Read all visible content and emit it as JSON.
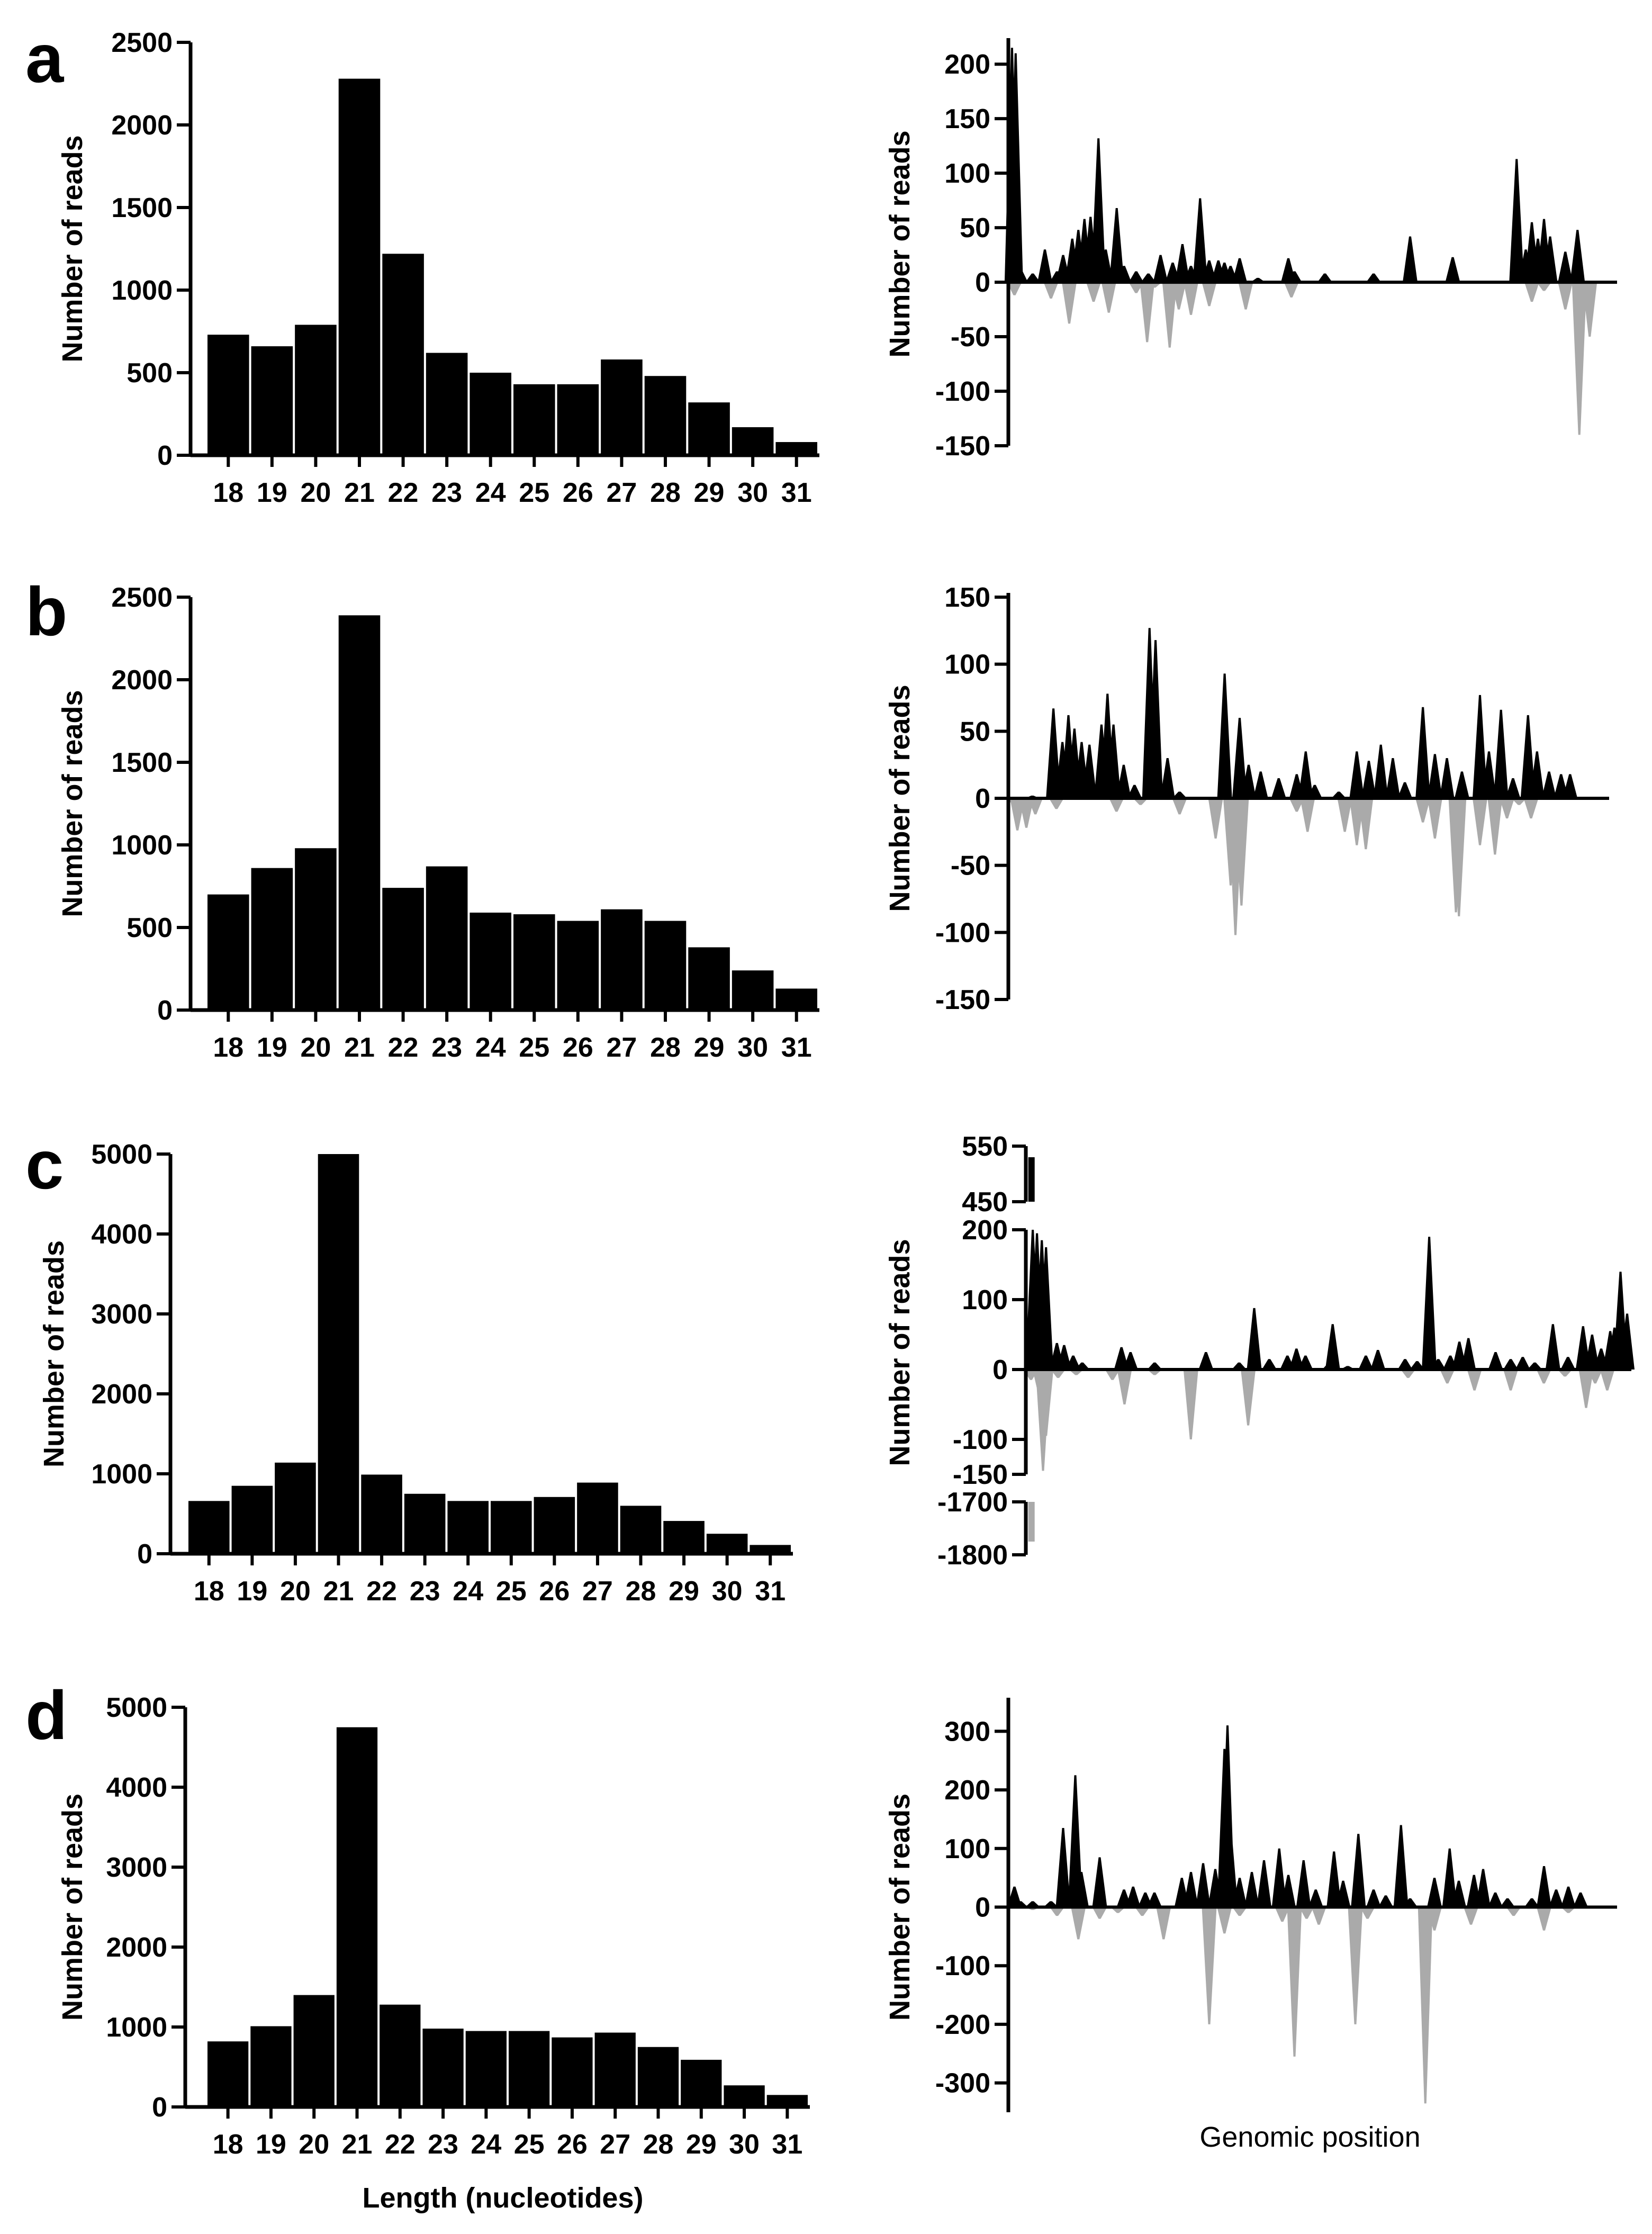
{
  "figure": {
    "x_title_left": "Length (nucleotides)",
    "x_title_right": "Genomic position",
    "colors": {
      "sense": "#000000",
      "antisense": "#aaaaaa",
      "bar": "#000000"
    }
  },
  "chart_data": [
    {
      "panel": "a",
      "side": "left",
      "type": "bar",
      "ylabel": "Number of reads",
      "categories": [
        "18",
        "19",
        "20",
        "21",
        "22",
        "23",
        "24",
        "25",
        "26",
        "27",
        "28",
        "29",
        "30",
        "31"
      ],
      "values": [
        730,
        660,
        790,
        2280,
        1220,
        620,
        500,
        430,
        430,
        580,
        480,
        320,
        170,
        80
      ],
      "ylim": [
        0,
        2500
      ],
      "yticks": [
        0,
        500,
        1000,
        1500,
        2000,
        2500
      ]
    },
    {
      "panel": "a",
      "side": "right",
      "type": "area",
      "ylabel": "Number of reads",
      "ylim": [
        -150,
        220
      ],
      "yticks": [
        -150,
        -100,
        -50,
        0,
        50,
        100,
        150,
        200
      ],
      "xrange": [
        0,
        100
      ],
      "sense_peaks": [
        [
          0.6,
          215
        ],
        [
          1.2,
          210
        ],
        [
          2,
          12
        ],
        [
          4,
          8
        ],
        [
          6,
          30
        ],
        [
          8,
          10
        ],
        [
          9,
          25
        ],
        [
          10.5,
          40
        ],
        [
          11.5,
          48
        ],
        [
          12.5,
          58
        ],
        [
          13.5,
          60
        ],
        [
          14.8,
          132
        ],
        [
          16,
          30
        ],
        [
          17.8,
          68
        ],
        [
          19,
          15
        ],
        [
          21,
          10
        ],
        [
          23,
          8
        ],
        [
          25,
          25
        ],
        [
          27,
          18
        ],
        [
          28.6,
          35
        ],
        [
          30,
          15
        ],
        [
          31.5,
          77
        ],
        [
          33,
          20
        ],
        [
          34.5,
          20
        ],
        [
          35.5,
          18
        ],
        [
          36.5,
          15
        ],
        [
          38,
          22
        ],
        [
          41,
          4
        ],
        [
          46,
          22
        ],
        [
          47,
          10
        ],
        [
          52,
          8
        ],
        [
          60,
          8
        ],
        [
          66,
          42
        ],
        [
          73,
          23
        ],
        [
          83.5,
          113
        ],
        [
          85,
          30
        ],
        [
          86,
          55
        ],
        [
          87,
          40
        ],
        [
          88,
          58
        ],
        [
          89,
          42
        ],
        [
          91.5,
          28
        ],
        [
          93.5,
          48
        ]
      ],
      "antisense_peaks": [
        [
          1,
          -12
        ],
        [
          7,
          -15
        ],
        [
          10,
          -38
        ],
        [
          14,
          -18
        ],
        [
          16.5,
          -28
        ],
        [
          21,
          -10
        ],
        [
          22.8,
          -55
        ],
        [
          24,
          -5
        ],
        [
          26.5,
          -60
        ],
        [
          28,
          -25
        ],
        [
          30,
          -30
        ],
        [
          33,
          -22
        ],
        [
          39,
          -25
        ],
        [
          46.5,
          -14
        ],
        [
          86,
          -18
        ],
        [
          88,
          -8
        ],
        [
          91.5,
          -25
        ],
        [
          93.8,
          -140
        ],
        [
          95.5,
          -50
        ]
      ]
    },
    {
      "panel": "b",
      "side": "left",
      "type": "bar",
      "ylabel": "Number of reads",
      "categories": [
        "18",
        "19",
        "20",
        "21",
        "22",
        "23",
        "24",
        "25",
        "26",
        "27",
        "28",
        "29",
        "30",
        "31"
      ],
      "values": [
        700,
        860,
        980,
        2390,
        740,
        870,
        590,
        580,
        540,
        610,
        540,
        380,
        240,
        130
      ],
      "ylim": [
        0,
        2500
      ],
      "yticks": [
        0,
        500,
        1000,
        1500,
        2000,
        2500
      ]
    },
    {
      "panel": "b",
      "side": "right",
      "type": "area",
      "ylabel": "Number of reads",
      "ylim": [
        -150,
        150
      ],
      "yticks": [
        -150,
        -100,
        -50,
        0,
        50,
        100,
        150
      ],
      "xrange": [
        0,
        100
      ],
      "sense_peaks": [
        [
          4,
          2
        ],
        [
          7.5,
          67
        ],
        [
          9,
          42
        ],
        [
          10,
          62
        ],
        [
          11,
          52
        ],
        [
          12.2,
          42
        ],
        [
          13.5,
          40
        ],
        [
          15.5,
          55
        ],
        [
          16.5,
          78
        ],
        [
          17.5,
          55
        ],
        [
          19.2,
          25
        ],
        [
          21,
          10
        ],
        [
          23.5,
          127
        ],
        [
          24.5,
          118
        ],
        [
          26.5,
          30
        ],
        [
          28.5,
          5
        ],
        [
          36,
          93
        ],
        [
          38.5,
          60
        ],
        [
          40,
          25
        ],
        [
          42,
          20
        ],
        [
          45,
          15
        ],
        [
          48,
          18
        ],
        [
          49.5,
          35
        ],
        [
          51,
          10
        ],
        [
          55,
          5
        ],
        [
          58,
          35
        ],
        [
          60,
          28
        ],
        [
          62,
          40
        ],
        [
          64,
          30
        ],
        [
          66,
          12
        ],
        [
          69,
          68
        ],
        [
          71,
          33
        ],
        [
          73,
          30
        ],
        [
          75.5,
          20
        ],
        [
          78.5,
          77
        ],
        [
          80,
          35
        ],
        [
          82,
          66
        ],
        [
          84,
          15
        ],
        [
          86.5,
          62
        ],
        [
          88,
          35
        ],
        [
          90,
          20
        ],
        [
          92,
          18
        ],
        [
          93.5,
          18
        ]
      ],
      "antisense_peaks": [
        [
          0.5,
          -3
        ],
        [
          1.5,
          -24
        ],
        [
          3,
          -22
        ],
        [
          4.5,
          -12
        ],
        [
          8,
          -8
        ],
        [
          18,
          -10
        ],
        [
          22,
          -5
        ],
        [
          28.5,
          -12
        ],
        [
          34.5,
          -30
        ],
        [
          37,
          -65
        ],
        [
          37.8,
          -102
        ],
        [
          38.8,
          -80
        ],
        [
          48,
          -10
        ],
        [
          49.8,
          -25
        ],
        [
          56,
          -25
        ],
        [
          58,
          -35
        ],
        [
          59.5,
          -38
        ],
        [
          69,
          -18
        ],
        [
          71,
          -30
        ],
        [
          74.5,
          -85
        ],
        [
          75,
          -88
        ],
        [
          78.5,
          -35
        ],
        [
          81,
          -42
        ],
        [
          83,
          -15
        ],
        [
          85,
          -5
        ],
        [
          87,
          -15
        ]
      ]
    },
    {
      "panel": "c",
      "side": "left",
      "type": "bar",
      "ylabel": "Number of reads",
      "categories": [
        "18",
        "19",
        "20",
        "21",
        "22",
        "23",
        "24",
        "25",
        "26",
        "27",
        "28",
        "29",
        "30",
        "31"
      ],
      "values": [
        660,
        850,
        1140,
        5000,
        990,
        750,
        660,
        660,
        710,
        890,
        600,
        410,
        250,
        110
      ],
      "ylim": [
        0,
        5000
      ],
      "yticks": [
        0,
        1000,
        2000,
        3000,
        4000,
        5000
      ]
    },
    {
      "panel": "c",
      "side": "right",
      "type": "area",
      "ylabel": "Number of reads",
      "broken_axis": true,
      "ylim_segments": [
        [
          450,
          550
        ],
        [
          -150,
          200
        ],
        [
          -1800,
          -1700
        ]
      ],
      "yticks": [
        -1800,
        -1700,
        -150,
        -100,
        0,
        100,
        200,
        450,
        550
      ],
      "xrange": [
        0,
        100
      ],
      "sense_peaks": [
        [
          0.8,
          200
        ],
        [
          1.5,
          195
        ],
        [
          2.3,
          185
        ],
        [
          3,
          175
        ],
        [
          4.8,
          38
        ],
        [
          6,
          35
        ],
        [
          7.5,
          20
        ],
        [
          9,
          10
        ],
        [
          15.5,
          32
        ],
        [
          17,
          25
        ],
        [
          21,
          10
        ],
        [
          29.5,
          25
        ],
        [
          35,
          10
        ],
        [
          37.5,
          88
        ],
        [
          40,
          15
        ],
        [
          43,
          20
        ],
        [
          44.5,
          30
        ],
        [
          46,
          20
        ],
        [
          50,
          10
        ],
        [
          50.5,
          65
        ],
        [
          53,
          5
        ],
        [
          56,
          20
        ],
        [
          58,
          28
        ],
        [
          62.5,
          15
        ],
        [
          64.5,
          12
        ],
        [
          66.5,
          190
        ],
        [
          68,
          15
        ],
        [
          70,
          20
        ],
        [
          71.5,
          40
        ],
        [
          73,
          45
        ],
        [
          77.5,
          25
        ],
        [
          80,
          15
        ],
        [
          82,
          18
        ],
        [
          84,
          10
        ],
        [
          87,
          65
        ],
        [
          89.5,
          18
        ],
        [
          92,
          62
        ],
        [
          93.5,
          50
        ],
        [
          95,
          30
        ],
        [
          96.5,
          55
        ],
        [
          97.2,
          60
        ],
        [
          98.2,
          140
        ],
        [
          99.3,
          80
        ]
      ],
      "antisense_peaks": [
        [
          0.5,
          -15
        ],
        [
          2,
          -40
        ],
        [
          2.5,
          -145
        ],
        [
          3,
          -95
        ],
        [
          5,
          -12
        ],
        [
          8,
          -8
        ],
        [
          14,
          -15
        ],
        [
          16,
          -50
        ],
        [
          21,
          -8
        ],
        [
          27,
          -100
        ],
        [
          36.5,
          -80
        ],
        [
          63,
          -12
        ],
        [
          69.5,
          -20
        ],
        [
          74,
          -30
        ],
        [
          80,
          -30
        ],
        [
          85.5,
          -20
        ],
        [
          89,
          -10
        ],
        [
          92.5,
          -55
        ],
        [
          94,
          -20
        ],
        [
          96,
          -30
        ]
      ],
      "broken_peaks": {
        "top": [
          [
            0.5,
            530
          ]
        ],
        "bottom": [
          [
            0.5,
            -1775
          ]
        ]
      }
    },
    {
      "panel": "d",
      "side": "left",
      "type": "bar",
      "ylabel": "Number of reads",
      "categories": [
        "18",
        "19",
        "20",
        "21",
        "22",
        "23",
        "24",
        "25",
        "26",
        "27",
        "28",
        "29",
        "30",
        "31"
      ],
      "values": [
        820,
        1010,
        1400,
        4750,
        1280,
        980,
        950,
        950,
        870,
        930,
        750,
        590,
        270,
        150
      ],
      "ylim": [
        0,
        5000
      ],
      "yticks": [
        0,
        1000,
        2000,
        3000,
        4000,
        5000
      ]
    },
    {
      "panel": "d",
      "side": "right",
      "type": "area",
      "ylabel": "Number of reads",
      "ylim": [
        -350,
        350
      ],
      "yticks": [
        -300,
        -200,
        -100,
        0,
        100,
        200,
        300
      ],
      "xrange": [
        0,
        100
      ],
      "sense_peaks": [
        [
          1,
          35
        ],
        [
          2,
          10
        ],
        [
          4,
          10
        ],
        [
          7,
          10
        ],
        [
          9,
          135
        ],
        [
          11,
          225
        ],
        [
          12,
          60
        ],
        [
          15,
          85
        ],
        [
          19,
          30
        ],
        [
          20.5,
          35
        ],
        [
          22.5,
          25
        ],
        [
          24,
          25
        ],
        [
          28.5,
          50
        ],
        [
          30,
          60
        ],
        [
          32,
          75
        ],
        [
          34,
          65
        ],
        [
          35.5,
          270
        ],
        [
          36,
          310
        ],
        [
          36.5,
          130
        ],
        [
          38,
          50
        ],
        [
          40,
          60
        ],
        [
          42,
          80
        ],
        [
          44.5,
          100
        ],
        [
          46,
          55
        ],
        [
          48.5,
          80
        ],
        [
          50.5,
          30
        ],
        [
          53.5,
          95
        ],
        [
          55,
          45
        ],
        [
          57.5,
          125
        ],
        [
          60,
          30
        ],
        [
          62,
          20
        ],
        [
          64.5,
          140
        ],
        [
          66,
          15
        ],
        [
          70,
          50
        ],
        [
          72.5,
          100
        ],
        [
          74,
          45
        ],
        [
          76.5,
          55
        ],
        [
          78,
          65
        ],
        [
          80,
          25
        ],
        [
          82,
          15
        ],
        [
          86,
          15
        ],
        [
          88,
          70
        ],
        [
          90,
          30
        ],
        [
          92,
          35
        ],
        [
          94,
          25
        ]
      ],
      "antisense_peaks": [
        [
          4,
          -5
        ],
        [
          8,
          -15
        ],
        [
          11.5,
          -55
        ],
        [
          15,
          -20
        ],
        [
          18,
          -10
        ],
        [
          22,
          -15
        ],
        [
          25.5,
          -55
        ],
        [
          33,
          -200
        ],
        [
          35.5,
          -45
        ],
        [
          38,
          -15
        ],
        [
          45,
          -25
        ],
        [
          47,
          -255
        ],
        [
          49,
          -20
        ],
        [
          51,
          -30
        ],
        [
          57,
          -200
        ],
        [
          59,
          -20
        ],
        [
          68.5,
          -335
        ],
        [
          70,
          -40
        ],
        [
          76,
          -30
        ],
        [
          83,
          -15
        ],
        [
          88,
          -40
        ],
        [
          92,
          -10
        ]
      ]
    }
  ]
}
